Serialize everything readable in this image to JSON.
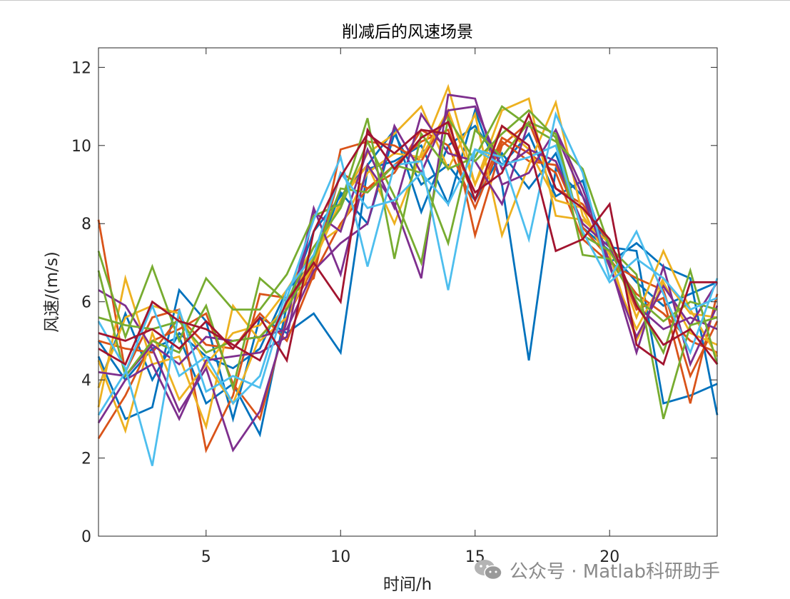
{
  "chart_data": {
    "type": "line",
    "title": "削减后的风速场景",
    "xlabel": "时间/h",
    "ylabel": "风速/(m/s)",
    "xlim": [
      1,
      24
    ],
    "ylim": [
      0,
      12.5
    ],
    "xticks": [
      5,
      10,
      15,
      20
    ],
    "yticks": [
      0,
      2,
      4,
      6,
      8,
      10,
      12
    ],
    "grid": false,
    "legend": "none",
    "x": [
      1,
      2,
      3,
      4,
      5,
      6,
      7,
      8,
      9,
      10,
      11,
      12,
      13,
      14,
      15,
      16,
      17,
      18,
      19,
      20,
      21,
      22,
      23,
      24
    ],
    "series": [
      {
        "color": "#0072BD",
        "values": [
          4.6,
          3.0,
          3.3,
          6.3,
          5.5,
          3.0,
          5.6,
          5.2,
          5.7,
          4.7,
          9.4,
          9.6,
          10.0,
          8.5,
          10.9,
          9.0,
          4.5,
          9.4,
          8.7,
          7.4,
          7.3,
          3.4,
          3.6,
          3.9
        ]
      },
      {
        "color": "#0072BD",
        "values": [
          5.0,
          4.0,
          4.8,
          5.1,
          3.4,
          3.9,
          2.6,
          5.9,
          7.8,
          8.7,
          9.5,
          10.4,
          8.3,
          10.0,
          10.5,
          9.5,
          10.3,
          8.7,
          9.1,
          7.0,
          7.5,
          6.9,
          6.6,
          3.1
        ]
      },
      {
        "color": "#0072BD",
        "values": [
          3.8,
          5.7,
          4.0,
          5.2,
          4.6,
          4.3,
          4.8,
          6.3,
          7.0,
          8.8,
          8.0,
          10.3,
          9.0,
          9.5,
          8.6,
          9.8,
          8.9,
          9.8,
          7.9,
          7.3,
          6.5,
          5.9,
          6.2,
          6.5
        ]
      },
      {
        "color": "#D95319",
        "values": [
          8.1,
          4.2,
          5.6,
          5.8,
          2.2,
          3.6,
          6.2,
          6.1,
          6.6,
          9.9,
          10.1,
          10.0,
          9.6,
          10.8,
          7.7,
          10.0,
          10.6,
          8.9,
          8.5,
          7.5,
          5.8,
          6.1,
          3.4,
          6.2
        ]
      },
      {
        "color": "#D95319",
        "values": [
          2.5,
          3.6,
          5.0,
          5.3,
          5.7,
          3.9,
          3.0,
          5.6,
          6.9,
          9.3,
          8.9,
          9.5,
          10.1,
          10.4,
          8.6,
          10.2,
          9.8,
          9.3,
          7.6,
          7.0,
          6.6,
          6.3,
          4.1,
          5.5
        ]
      },
      {
        "color": "#D95319",
        "values": [
          5.0,
          4.8,
          4.7,
          5.6,
          4.9,
          4.8,
          5.7,
          5.0,
          6.7,
          8.0,
          8.9,
          9.3,
          10.4,
          10.0,
          8.4,
          10.1,
          9.6,
          9.5,
          7.9,
          7.1,
          6.2,
          5.7,
          5.0,
          4.7
        ]
      },
      {
        "color": "#EDB120",
        "values": [
          3.3,
          6.6,
          4.4,
          4.6,
          2.8,
          5.9,
          5.0,
          5.6,
          7.0,
          8.6,
          9.5,
          8.0,
          9.8,
          11.5,
          9.0,
          10.9,
          11.2,
          8.2,
          8.1,
          7.5,
          5.6,
          7.3,
          5.8,
          4.6
        ]
      },
      {
        "color": "#EDB120",
        "values": [
          4.5,
          2.7,
          5.2,
          3.5,
          4.4,
          3.4,
          5.1,
          5.9,
          7.2,
          8.5,
          9.8,
          10.3,
          11.0,
          9.4,
          10.8,
          7.7,
          9.5,
          11.1,
          8.2,
          7.2,
          5.0,
          6.5,
          5.2,
          4.9
        ]
      },
      {
        "color": "#EDB120",
        "values": [
          3.8,
          5.6,
          5.9,
          5.7,
          4.4,
          5.2,
          5.4,
          6.3,
          7.4,
          7.9,
          9.3,
          9.8,
          9.7,
          10.9,
          9.0,
          10.5,
          9.9,
          8.6,
          8.4,
          6.9,
          5.3,
          6.6,
          5.7,
          5.6
        ]
      },
      {
        "color": "#7E2F8E",
        "values": [
          6.3,
          5.9,
          4.8,
          3.2,
          4.3,
          2.2,
          3.2,
          5.5,
          8.4,
          6.7,
          9.5,
          8.5,
          6.6,
          11.3,
          11.2,
          9.0,
          9.3,
          10.4,
          8.9,
          7.0,
          4.7,
          6.9,
          4.4,
          5.9
        ]
      },
      {
        "color": "#7E2F8E",
        "values": [
          2.9,
          4.0,
          4.4,
          3.0,
          4.5,
          4.6,
          4.7,
          5.1,
          8.3,
          7.8,
          9.9,
          8.4,
          10.8,
          9.8,
          9.6,
          8.5,
          10.6,
          10.3,
          8.7,
          6.9,
          5.1,
          6.4,
          5.4,
          6.5
        ]
      },
      {
        "color": "#7E2F8E",
        "values": [
          4.2,
          4.1,
          4.9,
          4.4,
          5.1,
          5.0,
          5.1,
          5.3,
          6.8,
          7.5,
          8.0,
          10.5,
          9.3,
          10.9,
          11.0,
          9.4,
          9.9,
          9.6,
          8.0,
          7.4,
          5.9,
          5.3,
          5.6,
          5.3
        ]
      },
      {
        "color": "#77AC30",
        "values": [
          7.3,
          5.1,
          6.9,
          5.0,
          6.6,
          5.8,
          5.8,
          6.7,
          8.2,
          8.5,
          10.7,
          7.1,
          10.3,
          9.4,
          9.7,
          11.0,
          10.5,
          10.1,
          9.4,
          7.4,
          6.7,
          3.0,
          5.4,
          5.6
        ]
      },
      {
        "color": "#77AC30",
        "values": [
          6.8,
          4.1,
          5.0,
          4.7,
          5.9,
          3.8,
          6.6,
          6.0,
          7.4,
          8.4,
          10.1,
          8.7,
          7.0,
          10.7,
          9.6,
          10.3,
          10.9,
          10.2,
          7.2,
          7.1,
          6.0,
          4.7,
          6.8,
          4.4
        ]
      },
      {
        "color": "#77AC30",
        "values": [
          5.6,
          5.4,
          5.3,
          5.5,
          4.7,
          5.0,
          5.1,
          5.8,
          7.1,
          8.9,
          8.8,
          9.5,
          9.3,
          7.5,
          10.4,
          9.7,
          10.6,
          10.3,
          7.7,
          7.3,
          6.1,
          5.5,
          6.0,
          5.8
        ]
      },
      {
        "color": "#4DBEEE",
        "values": [
          5.5,
          4.3,
          1.8,
          5.8,
          3.7,
          4.1,
          3.8,
          6.1,
          8.1,
          9.7,
          6.9,
          9.5,
          9.6,
          6.3,
          9.9,
          9.7,
          7.6,
          10.8,
          9.3,
          6.6,
          7.8,
          6.2,
          4.7,
          6.6
        ]
      },
      {
        "color": "#4DBEEE",
        "values": [
          3.1,
          4.2,
          5.9,
          4.1,
          4.6,
          3.4,
          4.1,
          6.3,
          7.2,
          9.3,
          8.4,
          8.6,
          9.3,
          8.5,
          9.9,
          9.5,
          9.7,
          10.0,
          7.8,
          6.5,
          7.1,
          6.6,
          5.8,
          6.1
        ]
      },
      {
        "color": "#A2142F",
        "values": [
          4.8,
          4.4,
          6.0,
          5.5,
          5.3,
          4.9,
          4.5,
          6.0,
          7.0,
          6.0,
          10.4,
          9.4,
          10.2,
          10.6,
          8.6,
          10.5,
          10.0,
          7.3,
          7.6,
          8.5,
          4.9,
          4.4,
          6.5,
          6.5
        ]
      },
      {
        "color": "#A2142F",
        "values": [
          5.2,
          5.0,
          5.3,
          4.8,
          5.5,
          4.8,
          5.6,
          4.5,
          7.8,
          9.2,
          10.3,
          9.8,
          10.4,
          10.3,
          8.8,
          9.3,
          10.8,
          8.9,
          8.4,
          7.6,
          5.9,
          4.9,
          5.3,
          4.4
        ]
      }
    ]
  },
  "watermark": {
    "text": "公众号 · Matlab科研助手",
    "icon": "wechat-icon"
  }
}
